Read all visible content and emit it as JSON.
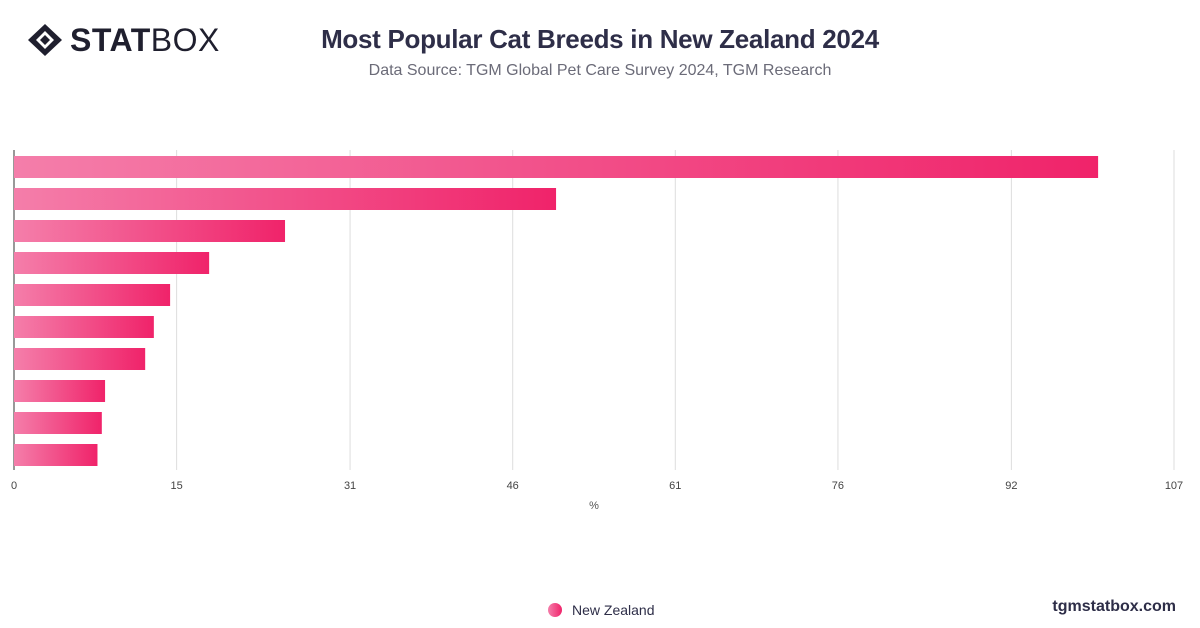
{
  "brand": {
    "logo_bold": "STAT",
    "logo_light": "BOX",
    "website": "tgmstatbox.com"
  },
  "colors": {
    "bar_start": "#f47eaa",
    "bar_end": "#f0236a",
    "grid": "#dddddd",
    "text": "#2e2e48"
  },
  "chart_data": {
    "type": "bar",
    "orientation": "horizontal",
    "title": "Most Popular Cat Breeds in New Zealand 2024",
    "subtitle": "Data Source: TGM Global Pet Care Survey 2024, TGM Research",
    "xlabel": "%",
    "xticks": [
      "0",
      "15",
      "31",
      "46",
      "61",
      "76",
      "92",
      "107"
    ],
    "xlim": [
      0,
      107
    ],
    "category_labels_visible": false,
    "categories": [
      "",
      "",
      "",
      "",
      "",
      "",
      "",
      "",
      "",
      ""
    ],
    "series": [
      {
        "name": "New Zealand",
        "values": [
          100,
          50,
          25,
          18,
          14.4,
          12.9,
          12.1,
          8.4,
          8.1,
          7.7
        ]
      }
    ],
    "grid": true,
    "legend": "bottom-center"
  }
}
